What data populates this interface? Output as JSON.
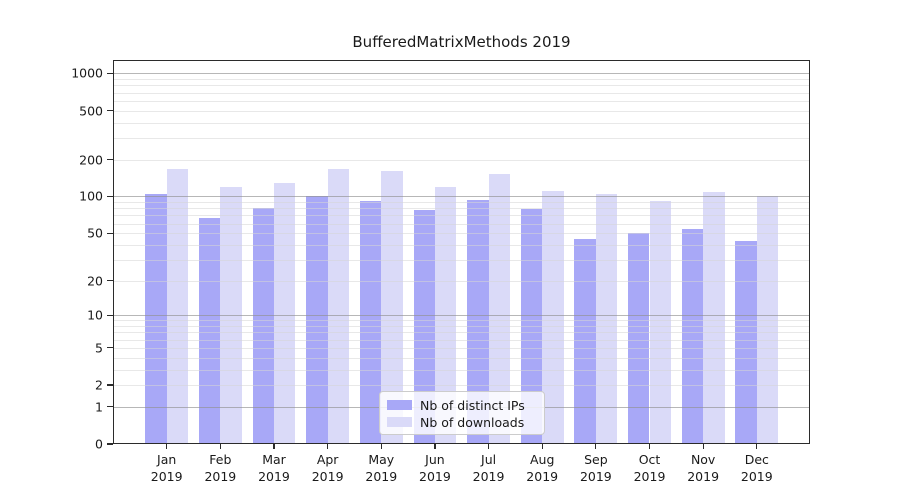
{
  "title": "BufferedMatrixMethods 2019",
  "chart_data": {
    "type": "bar",
    "title": "BufferedMatrixMethods 2019",
    "categories": [
      "Jan 2019",
      "Feb 2019",
      "Mar 2019",
      "Apr 2019",
      "May 2019",
      "Jun 2019",
      "Jul 2019",
      "Aug 2019",
      "Sep 2019",
      "Oct 2019",
      "Nov 2019",
      "Dec 2019"
    ],
    "category_lines": [
      {
        "month": "Jan",
        "year": "2019"
      },
      {
        "month": "Feb",
        "year": "2019"
      },
      {
        "month": "Mar",
        "year": "2019"
      },
      {
        "month": "Apr",
        "year": "2019"
      },
      {
        "month": "May",
        "year": "2019"
      },
      {
        "month": "Jun",
        "year": "2019"
      },
      {
        "month": "Jul",
        "year": "2019"
      },
      {
        "month": "Aug",
        "year": "2019"
      },
      {
        "month": "Sep",
        "year": "2019"
      },
      {
        "month": "Oct",
        "year": "2019"
      },
      {
        "month": "Nov",
        "year": "2019"
      },
      {
        "month": "Dec",
        "year": "2019"
      }
    ],
    "series": [
      {
        "name": "Nb of distinct IPs",
        "color": "#a8a8f7",
        "values": [
          105,
          67,
          80,
          100,
          91,
          78,
          94,
          79,
          45,
          50,
          54,
          43
        ]
      },
      {
        "name": "Nb of downloads",
        "color": "#dadaf8",
        "values": [
          168,
          120,
          130,
          168,
          161,
          119,
          153,
          111,
          104,
          92,
          109,
          101
        ]
      }
    ],
    "yscale": "log1p",
    "ytick_labels": [
      "0",
      "1",
      "2",
      "5",
      "10",
      "20",
      "50",
      "100",
      "200",
      "500",
      "1000"
    ],
    "ytick_values": [
      0,
      1,
      2,
      5,
      10,
      20,
      50,
      100,
      200,
      500,
      1000
    ],
    "ylim": [
      0,
      1285
    ],
    "grid": "horizontal",
    "grid_major_values": [
      1,
      10,
      100,
      1000
    ],
    "legend_position": "inside-bottom-center",
    "colors": {
      "major_grid": "#919191",
      "minor_grid": "#d6d6d6",
      "axis": "#2b2b2b",
      "text": "#1a1a1a"
    }
  }
}
